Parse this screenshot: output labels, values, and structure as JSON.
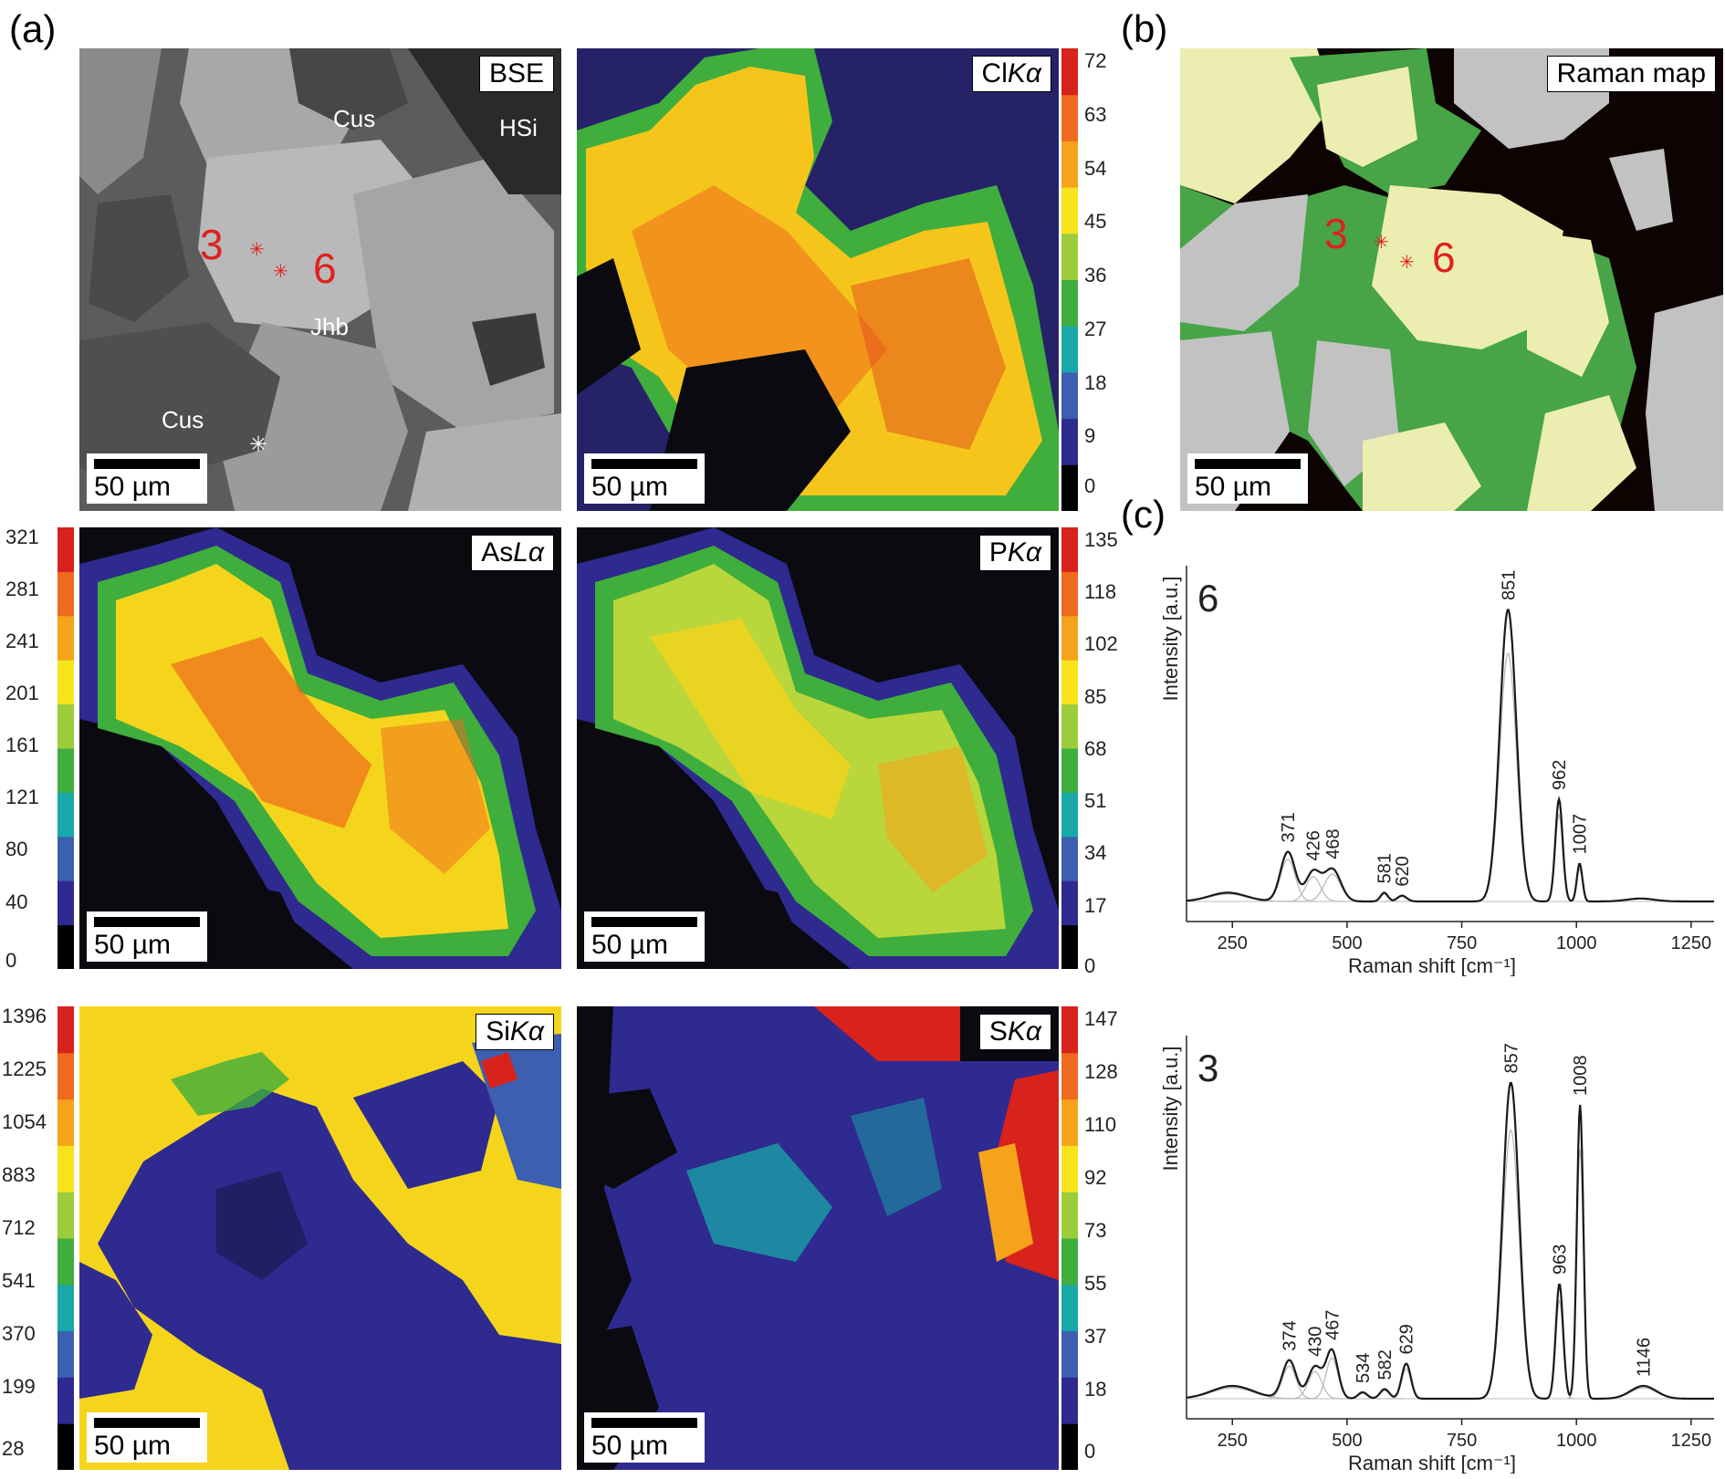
{
  "figure": {
    "panel_a": "(a)",
    "panel_b": "(b)",
    "panel_c": "(c)",
    "scale": "50 µm"
  },
  "maps": {
    "bse": {
      "label": "BSE",
      "minerals": [
        "Cus",
        "HSi",
        "Jhb",
        "Cus"
      ],
      "points": [
        "3",
        "6"
      ]
    },
    "cl": {
      "element": "Cl",
      "line": "Kα",
      "ticks": [
        "72",
        "63",
        "54",
        "45",
        "36",
        "27",
        "18",
        "9",
        "0"
      ]
    },
    "as": {
      "element": "As",
      "line": "Lα",
      "ticks": [
        "321",
        "281",
        "241",
        "201",
        "161",
        "121",
        "80",
        "40",
        "0"
      ]
    },
    "p": {
      "element": "P",
      "line": "Kα",
      "ticks": [
        "135",
        "118",
        "102",
        "85",
        "68",
        "51",
        "34",
        "17",
        "0"
      ]
    },
    "si": {
      "element": "Si",
      "line": "Kα",
      "ticks": [
        "1396",
        "1225",
        "1054",
        "883",
        "712",
        "541",
        "370",
        "199",
        "28"
      ]
    },
    "s": {
      "element": "S",
      "line": "Kα",
      "ticks": [
        "147",
        "128",
        "110",
        "92",
        "73",
        "55",
        "37",
        "18",
        "0"
      ]
    },
    "raman": {
      "label": "Raman map",
      "points": [
        "3",
        "6"
      ]
    }
  },
  "colors": {
    "scale": [
      "#000000",
      "#2e2a8f",
      "#3c5fb0",
      "#19a8a8",
      "#3fae3c",
      "#9ccc3a",
      "#f7e41c",
      "#f5a31a",
      "#ef6a1e",
      "#d8221c"
    ],
    "raman_green": "#47a447",
    "raman_yellow": "#ecedb0",
    "raman_gray": "#c2c2c2",
    "raman_black": "#0d0303",
    "point_red": "#e0201c"
  },
  "chart_data": [
    {
      "type": "line",
      "panel": "6",
      "xlabel": "Raman shift [cm⁻¹]",
      "ylabel": "Intensity [a.u.]",
      "xlim": [
        150,
        1300
      ],
      "xticks": [
        250,
        500,
        750,
        1000,
        1250
      ],
      "peaks": [
        {
          "x": 240,
          "h": 0.03,
          "w": 40
        },
        {
          "x": 371,
          "h": 0.17,
          "w": 16
        },
        {
          "x": 426,
          "h": 0.1,
          "w": 16
        },
        {
          "x": 468,
          "h": 0.11,
          "w": 18
        },
        {
          "x": 581,
          "h": 0.03,
          "w": 8
        },
        {
          "x": 620,
          "h": 0.02,
          "w": 10
        },
        {
          "x": 851,
          "h": 1.0,
          "w": 18
        },
        {
          "x": 962,
          "h": 0.35,
          "w": 8
        },
        {
          "x": 1007,
          "h": 0.13,
          "w": 6
        },
        {
          "x": 1140,
          "h": 0.01,
          "w": 30
        }
      ],
      "peak_labels": [
        "371",
        "426",
        "468",
        "581",
        "620",
        "851",
        "962",
        "1007"
      ]
    },
    {
      "type": "line",
      "panel": "3",
      "xlabel": "Raman shift [cm⁻¹]",
      "ylabel": "Intensity [a.u.]",
      "xlim": [
        150,
        1300
      ],
      "xticks": [
        250,
        500,
        750,
        1000,
        1250
      ],
      "peaks": [
        {
          "x": 250,
          "h": 0.04,
          "w": 45
        },
        {
          "x": 374,
          "h": 0.12,
          "w": 15
        },
        {
          "x": 430,
          "h": 0.1,
          "w": 15
        },
        {
          "x": 467,
          "h": 0.15,
          "w": 13
        },
        {
          "x": 534,
          "h": 0.02,
          "w": 10
        },
        {
          "x": 582,
          "h": 0.03,
          "w": 10
        },
        {
          "x": 629,
          "h": 0.11,
          "w": 10
        },
        {
          "x": 857,
          "h": 0.99,
          "w": 18
        },
        {
          "x": 963,
          "h": 0.36,
          "w": 8
        },
        {
          "x": 1008,
          "h": 0.92,
          "w": 7
        },
        {
          "x": 1146,
          "h": 0.04,
          "w": 28
        }
      ],
      "peak_labels": [
        "374",
        "430",
        "467",
        "534",
        "582",
        "629",
        "857",
        "963",
        "1008",
        "1146"
      ]
    }
  ]
}
